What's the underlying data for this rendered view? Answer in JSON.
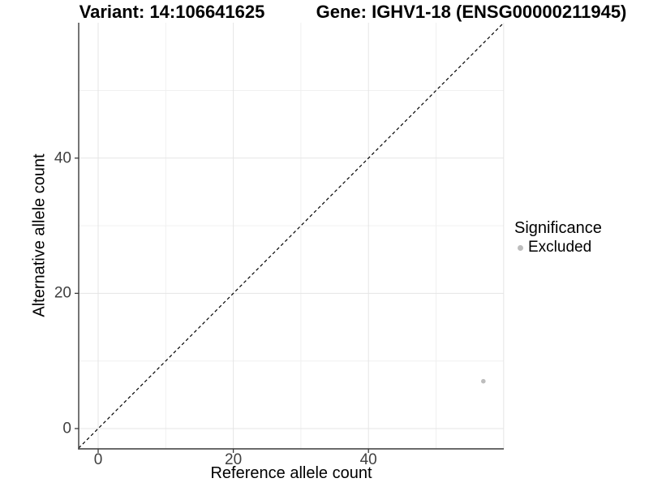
{
  "chart_data": {
    "type": "scatter",
    "titles": {
      "left": "Variant: 14:106641625",
      "right": "Gene: IGHV1-18 (ENSG00000211945)"
    },
    "xlabel": "Reference allele count",
    "ylabel": "Alternative allele count",
    "xlim": [
      -2.9,
      60
    ],
    "ylim": [
      -2.9,
      60
    ],
    "x_tick_labels": [
      "0",
      "20",
      "40"
    ],
    "x_tick_values": [
      0,
      20,
      40
    ],
    "y_tick_labels": [
      "0",
      "20",
      "40"
    ],
    "y_tick_values": [
      0,
      20,
      40
    ],
    "x_grid_major": [
      0,
      20,
      40,
      60
    ],
    "x_grid_minor": [
      10,
      30,
      50
    ],
    "y_grid_major": [
      0,
      20,
      40
    ],
    "y_grid_minor": [
      10,
      30,
      50
    ],
    "grid": "major and minor gridlines, light gray on white panel",
    "reference_line": {
      "style": "dashed",
      "equation": "y = x",
      "from": [
        -2.9,
        -2.9
      ],
      "to": [
        60,
        60
      ],
      "color": "#000000"
    },
    "series": [
      {
        "name": "Excluded",
        "color": "#bdbdbd",
        "points": [
          [
            57,
            7
          ]
        ]
      }
    ],
    "legend": {
      "title": "Significance",
      "position": "right",
      "items": [
        {
          "label": "Excluded",
          "color": "#bdbdbd"
        }
      ]
    },
    "colors": {
      "axis_line": "#3a3a3a",
      "tick_mark": "#3a3a3a",
      "tick_label": "#404040",
      "grid_major": "#e5e5e5",
      "grid_minor": "#f0f0f0",
      "background": "#ffffff"
    }
  }
}
